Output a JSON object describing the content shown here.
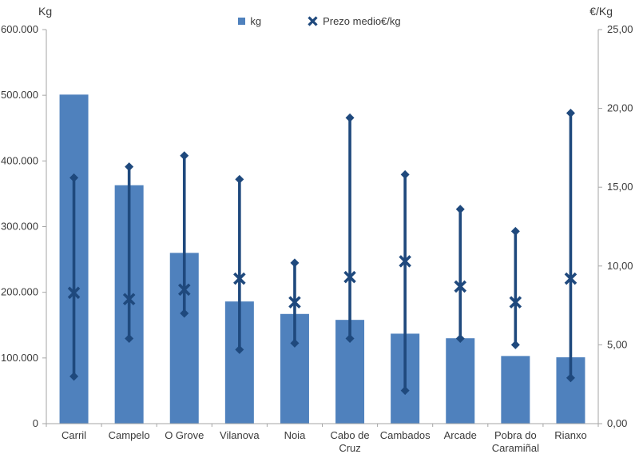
{
  "chart_data": {
    "type": "combo-bar-hilo",
    "title": "",
    "categories": [
      "Carril",
      "Campelo",
      "O Grove",
      "Vilanova",
      "Noia",
      "Cabo de Cruz",
      "Cambados",
      "Arcade",
      "Pobra do Caramiñal",
      "Rianxo"
    ],
    "category_label_lines": [
      [
        "Carril"
      ],
      [
        "Campelo"
      ],
      [
        "O Grove"
      ],
      [
        "Vilanova"
      ],
      [
        "Noia"
      ],
      [
        "Cabo de",
        "Cruz"
      ],
      [
        "Cambados"
      ],
      [
        "Arcade"
      ],
      [
        "Pobra do",
        "Caramiñal"
      ],
      [
        "Rianxo"
      ]
    ],
    "series": [
      {
        "name": "kg",
        "type": "bar",
        "axis": "left",
        "color": "#4f81bd",
        "values": [
          501000,
          363000,
          260000,
          186000,
          167000,
          158000,
          137000,
          130000,
          103000,
          101000
        ]
      },
      {
        "name": "Prezo medio€/kg",
        "type": "hilo-range-with-avg",
        "axis": "right",
        "color": "#1f497d",
        "high": [
          15.6,
          16.3,
          17.0,
          15.5,
          10.2,
          19.4,
          15.8,
          13.6,
          12.2,
          19.7
        ],
        "avg": [
          8.3,
          7.9,
          8.5,
          9.2,
          7.7,
          9.3,
          10.3,
          8.7,
          7.7,
          9.2
        ],
        "low": [
          3.0,
          5.4,
          7.0,
          4.7,
          5.1,
          5.4,
          2.1,
          5.4,
          5.0,
          2.9
        ]
      }
    ],
    "left_axis": {
      "title": "Kg",
      "min": 0,
      "max": 600000,
      "tick_values": [
        600000,
        500000,
        400000,
        300000,
        200000,
        100000,
        0
      ],
      "tick_labels": [
        "600.000",
        "500.000",
        "400.000",
        "300.000",
        "200.000",
        "100.000",
        "0"
      ]
    },
    "right_axis": {
      "title": "€/Kg",
      "min": 0,
      "max": 25,
      "tick_values": [
        25,
        20,
        15,
        10,
        5,
        0
      ],
      "tick_labels": [
        "25,00",
        "20,00",
        "15,00",
        "10,00",
        "5,00",
        "0,00"
      ]
    },
    "legend": [
      {
        "label": "kg",
        "marker": "square"
      },
      {
        "label": "Prezo medio€/kg",
        "marker": "x"
      }
    ],
    "legend_position": "top-center",
    "grid": false,
    "axis_color": "#a6a6a6",
    "text_color": "#3a3a3a"
  }
}
